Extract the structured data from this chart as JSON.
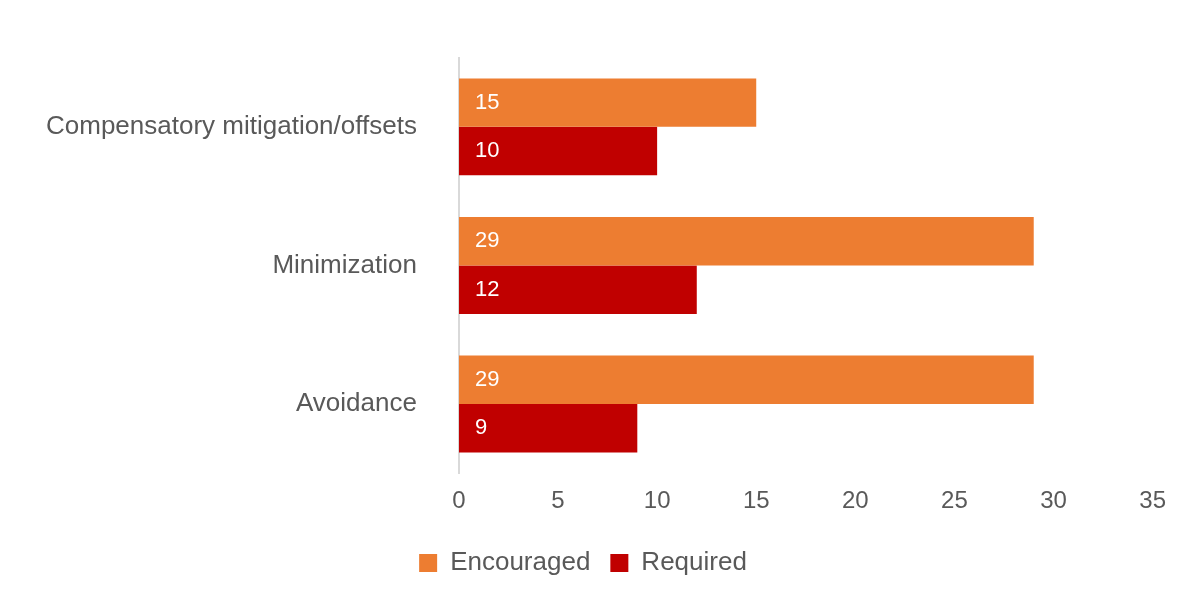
{
  "chart_data": {
    "type": "bar",
    "orientation": "horizontal",
    "categories": [
      "Compensatory mitigation/offsets",
      "Minimization",
      "Avoidance"
    ],
    "series": [
      {
        "name": "Encouraged",
        "color": "#ed7d31",
        "values": [
          15,
          29,
          29
        ]
      },
      {
        "name": "Required",
        "color": "#c00000",
        "values": [
          10,
          12,
          9
        ]
      }
    ],
    "xlim": [
      0,
      35
    ],
    "xticks": [
      0,
      5,
      10,
      15,
      20,
      25,
      30,
      35
    ],
    "data_labels": true,
    "legend": "bottom"
  }
}
